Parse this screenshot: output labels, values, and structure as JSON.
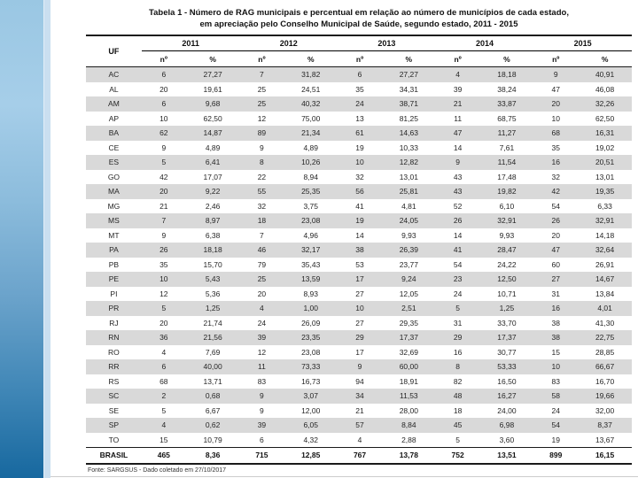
{
  "title": {
    "line1": "Tabela 1 - Número de RAG municipais e percentual em relação ao número de municípios de cada estado,",
    "line2": "em apreciação pelo Conselho Municipal de Saúde, segundo estado, 2011 - 2015"
  },
  "table": {
    "uf_header": "UF",
    "years": [
      "2011",
      "2012",
      "2013",
      "2014",
      "2015"
    ],
    "subheaders": {
      "n": "nº",
      "pct": "%"
    },
    "rows": [
      {
        "uf": "AC",
        "values": [
          "6",
          "27,27",
          "7",
          "31,82",
          "6",
          "27,27",
          "4",
          "18,18",
          "9",
          "40,91"
        ]
      },
      {
        "uf": "AL",
        "values": [
          "20",
          "19,61",
          "25",
          "24,51",
          "35",
          "34,31",
          "39",
          "38,24",
          "47",
          "46,08"
        ]
      },
      {
        "uf": "AM",
        "values": [
          "6",
          "9,68",
          "25",
          "40,32",
          "24",
          "38,71",
          "21",
          "33,87",
          "20",
          "32,26"
        ]
      },
      {
        "uf": "AP",
        "values": [
          "10",
          "62,50",
          "12",
          "75,00",
          "13",
          "81,25",
          "11",
          "68,75",
          "10",
          "62,50"
        ]
      },
      {
        "uf": "BA",
        "values": [
          "62",
          "14,87",
          "89",
          "21,34",
          "61",
          "14,63",
          "47",
          "11,27",
          "68",
          "16,31"
        ]
      },
      {
        "uf": "CE",
        "values": [
          "9",
          "4,89",
          "9",
          "4,89",
          "19",
          "10,33",
          "14",
          "7,61",
          "35",
          "19,02"
        ]
      },
      {
        "uf": "ES",
        "values": [
          "5",
          "6,41",
          "8",
          "10,26",
          "10",
          "12,82",
          "9",
          "11,54",
          "16",
          "20,51"
        ]
      },
      {
        "uf": "GO",
        "values": [
          "42",
          "17,07",
          "22",
          "8,94",
          "32",
          "13,01",
          "43",
          "17,48",
          "32",
          "13,01"
        ]
      },
      {
        "uf": "MA",
        "values": [
          "20",
          "9,22",
          "55",
          "25,35",
          "56",
          "25,81",
          "43",
          "19,82",
          "42",
          "19,35"
        ]
      },
      {
        "uf": "MG",
        "values": [
          "21",
          "2,46",
          "32",
          "3,75",
          "41",
          "4,81",
          "52",
          "6,10",
          "54",
          "6,33"
        ]
      },
      {
        "uf": "MS",
        "values": [
          "7",
          "8,97",
          "18",
          "23,08",
          "19",
          "24,05",
          "26",
          "32,91",
          "26",
          "32,91"
        ]
      },
      {
        "uf": "MT",
        "values": [
          "9",
          "6,38",
          "7",
          "4,96",
          "14",
          "9,93",
          "14",
          "9,93",
          "20",
          "14,18"
        ]
      },
      {
        "uf": "PA",
        "values": [
          "26",
          "18,18",
          "46",
          "32,17",
          "38",
          "26,39",
          "41",
          "28,47",
          "47",
          "32,64"
        ]
      },
      {
        "uf": "PB",
        "values": [
          "35",
          "15,70",
          "79",
          "35,43",
          "53",
          "23,77",
          "54",
          "24,22",
          "60",
          "26,91"
        ]
      },
      {
        "uf": "PE",
        "values": [
          "10",
          "5,43",
          "25",
          "13,59",
          "17",
          "9,24",
          "23",
          "12,50",
          "27",
          "14,67"
        ]
      },
      {
        "uf": "PI",
        "values": [
          "12",
          "5,36",
          "20",
          "8,93",
          "27",
          "12,05",
          "24",
          "10,71",
          "31",
          "13,84"
        ]
      },
      {
        "uf": "PR",
        "values": [
          "5",
          "1,25",
          "4",
          "1,00",
          "10",
          "2,51",
          "5",
          "1,25",
          "16",
          "4,01"
        ]
      },
      {
        "uf": "RJ",
        "values": [
          "20",
          "21,74",
          "24",
          "26,09",
          "27",
          "29,35",
          "31",
          "33,70",
          "38",
          "41,30"
        ]
      },
      {
        "uf": "RN",
        "values": [
          "36",
          "21,56",
          "39",
          "23,35",
          "29",
          "17,37",
          "29",
          "17,37",
          "38",
          "22,75"
        ]
      },
      {
        "uf": "RO",
        "values": [
          "4",
          "7,69",
          "12",
          "23,08",
          "17",
          "32,69",
          "16",
          "30,77",
          "15",
          "28,85"
        ]
      },
      {
        "uf": "RR",
        "values": [
          "6",
          "40,00",
          "11",
          "73,33",
          "9",
          "60,00",
          "8",
          "53,33",
          "10",
          "66,67"
        ]
      },
      {
        "uf": "RS",
        "values": [
          "68",
          "13,71",
          "83",
          "16,73",
          "94",
          "18,91",
          "82",
          "16,50",
          "83",
          "16,70"
        ]
      },
      {
        "uf": "SC",
        "values": [
          "2",
          "0,68",
          "9",
          "3,07",
          "34",
          "11,53",
          "48",
          "16,27",
          "58",
          "19,66"
        ]
      },
      {
        "uf": "SE",
        "values": [
          "5",
          "6,67",
          "9",
          "12,00",
          "21",
          "28,00",
          "18",
          "24,00",
          "24",
          "32,00"
        ]
      },
      {
        "uf": "SP",
        "values": [
          "4",
          "0,62",
          "39",
          "6,05",
          "57",
          "8,84",
          "45",
          "6,98",
          "54",
          "8,37"
        ]
      },
      {
        "uf": "TO",
        "values": [
          "15",
          "10,79",
          "6",
          "4,32",
          "4",
          "2,88",
          "5",
          "3,60",
          "19",
          "13,67"
        ]
      }
    ],
    "total": {
      "uf": "BRASIL",
      "values": [
        "465",
        "8,36",
        "715",
        "12,85",
        "767",
        "13,78",
        "752",
        "13,51",
        "899",
        "16,15"
      ]
    }
  },
  "footer": {
    "source": "Fonte: SARGSUS - Dado coletado em 27/10/2017"
  },
  "colors": {
    "row_stripe": "#d9d9d9",
    "accent_strip_top": "#9ac7e3",
    "accent_strip_bottom": "#17689f",
    "accent_strip_light": "#cadff0",
    "rule": "#1a1a1a"
  }
}
